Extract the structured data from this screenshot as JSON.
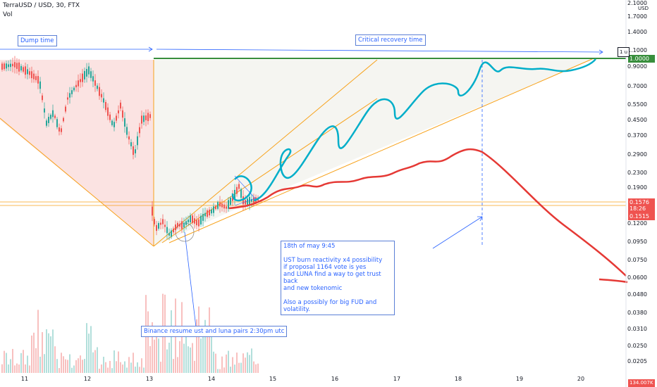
{
  "header": {
    "title": "TerraUSD / USD, 30, FTX",
    "vol_label": "Vol"
  },
  "y_axis": {
    "currency": "USD",
    "ticks": [
      "2.1000",
      "1.7000",
      "1.4000",
      "1.1000",
      "0.9000",
      "0.7000",
      "0.5500",
      "0.4500",
      "0.3700",
      "0.2900",
      "0.2300",
      "0.1900",
      "0.1200",
      "0.0950",
      "0.0750",
      "0.0600",
      "0.0480",
      "0.0380",
      "0.0310",
      "0.0250",
      "0.0205"
    ]
  },
  "x_axis": {
    "ticks": [
      "11",
      "12",
      "13",
      "14",
      "15",
      "16",
      "17",
      "18",
      "19",
      "20"
    ]
  },
  "price_tags": {
    "top": "1.0000",
    "current": "0.1576",
    "countdown": "18:26",
    "support": "0.1515",
    "volume": "134.007K"
  },
  "annotations": {
    "dump_time": "Dump time",
    "critical_recovery": "Critical recovery time",
    "binance": "Binance resume ust and luna pairs 2:30pm utc",
    "note": "18th of may 9:45\n\nUST burn reactivity x4 possibility\nif proposal 1164 vote is yes\nand LUNA find a way to get trust back\nand new tokenomic\n\nAlso a possibly for big FUD and volatility.",
    "one_u": "1 u"
  },
  "colors": {
    "up": "#26a69a",
    "down": "#ef5350",
    "orange": "#f7a21b",
    "green_line": "#388e3c",
    "blue_path": "#00b0c8",
    "red_path": "#e53935",
    "annotation_blue": "#2962ff"
  },
  "chart_data": {
    "type": "candlestick",
    "title": "TerraUSD / USD, 30, FTX",
    "x_categories": [
      "11",
      "12",
      "13",
      "14",
      "15",
      "16",
      "17",
      "18",
      "19",
      "20"
    ],
    "y_scale": "log",
    "y_range": [
      0.0205,
      2.1
    ],
    "horizontal_levels": [
      1.0,
      0.1576,
      0.1515
    ],
    "last_price": 0.1576
  }
}
